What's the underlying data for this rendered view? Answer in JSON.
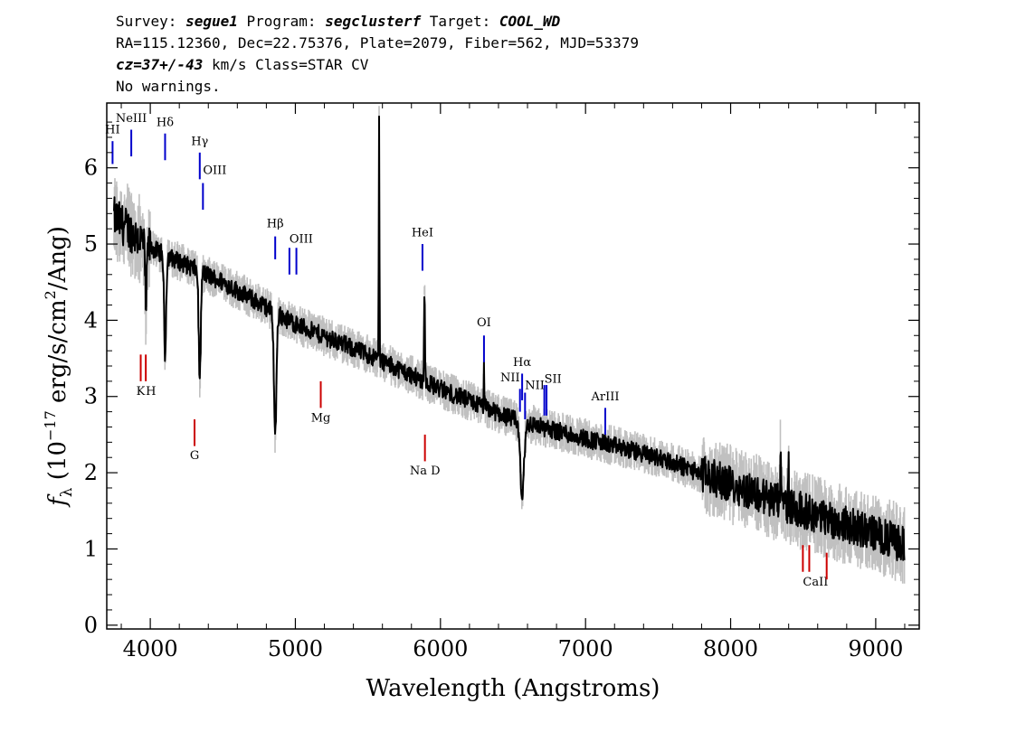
{
  "header": {
    "line1": {
      "survey_label": "Survey: ",
      "survey": "segue1",
      "program_label": " Program: ",
      "program": "segclusterf",
      "target_label": " Target: ",
      "target": "COOL_WD"
    },
    "line2": "RA=115.12360, Dec=22.75376, Plate=2079, Fiber=562, MJD=53379",
    "line3": {
      "cz": "cz=37+/-43",
      "rest": " km/s Class=STAR CV"
    },
    "line4": "No warnings."
  },
  "chart_data": {
    "type": "line",
    "xlabel": "Wavelength (Angstroms)",
    "ylabel_parts": {
      "f": "f",
      "sub": "λ",
      "pre": " (10",
      "exp1": "−17",
      "mid": " erg/s/cm",
      "exp2": "2",
      "post": "/Ang)"
    },
    "xlim": [
      3700,
      9300
    ],
    "ylim": [
      -0.05,
      6.85
    ],
    "xticks": [
      4000,
      5000,
      6000,
      7000,
      8000,
      9000
    ],
    "yticks": [
      0,
      1,
      2,
      3,
      4,
      5,
      6
    ],
    "xtick_labels": [
      "4000",
      "5000",
      "6000",
      "7000",
      "8000",
      "9000"
    ],
    "ytick_labels": [
      "0",
      "1",
      "2",
      "3",
      "4",
      "5",
      "6"
    ],
    "spectrum_range": [
      3750,
      9200
    ],
    "continuum": [
      [
        3750,
        5.35
      ],
      [
        4000,
        4.95
      ],
      [
        4500,
        4.5
      ],
      [
        5000,
        3.95
      ],
      [
        5500,
        3.55
      ],
      [
        6000,
        3.1
      ],
      [
        6500,
        2.7
      ],
      [
        7000,
        2.45
      ],
      [
        7500,
        2.2
      ],
      [
        8000,
        1.85
      ],
      [
        8500,
        1.5
      ],
      [
        9000,
        1.2
      ],
      [
        9200,
        1.05
      ]
    ],
    "absorption": [
      {
        "x": 3970,
        "depth": 0.8,
        "w": 8
      },
      {
        "x": 4102,
        "depth": 1.3,
        "w": 10
      },
      {
        "x": 4341,
        "depth": 1.4,
        "w": 10
      },
      {
        "x": 4861,
        "depth": 1.6,
        "w": 12
      },
      {
        "x": 6563,
        "depth": 1.0,
        "w": 18
      }
    ],
    "emission": [
      {
        "x": 5577,
        "height": 3.3,
        "w": 3
      },
      {
        "x": 5890,
        "height": 1.3,
        "w": 4
      },
      {
        "x": 6300,
        "height": 0.6,
        "w": 3
      },
      {
        "x": 8344,
        "height": 0.7,
        "w": 3
      },
      {
        "x": 8399,
        "height": 0.6,
        "w": 3
      }
    ],
    "lines": [
      {
        "label": "HI",
        "x": 3740,
        "ytop": 6.35,
        "ybot": 6.05,
        "color": "#0000cc",
        "label_y": 6.45,
        "anchor": "middle"
      },
      {
        "label": "NeIII",
        "x": 3869,
        "ytop": 6.5,
        "ybot": 6.15,
        "color": "#0000cc",
        "label_y": 6.6,
        "anchor": "middle"
      },
      {
        "label": "Hδ",
        "x": 4102,
        "ytop": 6.45,
        "ybot": 6.1,
        "color": "#0000cc",
        "label_y": 6.55,
        "anchor": "middle"
      },
      {
        "label": "Hγ",
        "x": 4341,
        "ytop": 6.2,
        "ybot": 5.85,
        "color": "#0000cc",
        "label_y": 6.3,
        "anchor": "middle"
      },
      {
        "label": "OIII",
        "x": 4363,
        "ytop": 5.8,
        "ybot": 5.45,
        "color": "#0000cc",
        "label_y": 5.92,
        "anchor": "start"
      },
      {
        "label": "Hβ",
        "x": 4861,
        "ytop": 5.1,
        "ybot": 4.8,
        "color": "#0000cc",
        "label_y": 5.22,
        "anchor": "middle"
      },
      {
        "label": "OIII",
        "x": 4959,
        "ytop": 4.95,
        "ybot": 4.6,
        "color": "#0000cc",
        "label_y": 5.02,
        "anchor": "start"
      },
      {
        "label": "",
        "x": 5007,
        "ytop": 4.95,
        "ybot": 4.6,
        "color": "#0000cc",
        "label_y": 5.02,
        "anchor": "start"
      },
      {
        "label": "HeI",
        "x": 5876,
        "ytop": 5.0,
        "ybot": 4.65,
        "color": "#0000cc",
        "label_y": 5.1,
        "anchor": "middle"
      },
      {
        "label": "OI",
        "x": 6300,
        "ytop": 3.8,
        "ybot": 3.45,
        "color": "#0000cc",
        "label_y": 3.92,
        "anchor": "middle"
      },
      {
        "label": "NII",
        "x": 6548,
        "ytop": 3.1,
        "ybot": 2.8,
        "color": "#0000cc",
        "label_y": 3.2,
        "anchor": "end"
      },
      {
        "label": "Hα",
        "x": 6563,
        "ytop": 3.3,
        "ybot": 2.95,
        "color": "#0000cc",
        "label_y": 3.4,
        "anchor": "middle"
      },
      {
        "label": "NII",
        "x": 6583,
        "ytop": 3.05,
        "ybot": 2.7,
        "color": "#0000cc",
        "label_y": 3.1,
        "anchor": "start"
      },
      {
        "label": "SII",
        "x": 6716,
        "ytop": 3.15,
        "ybot": 2.75,
        "color": "#0000cc",
        "label_y": 3.18,
        "anchor": "start"
      },
      {
        "label": "",
        "x": 6731,
        "ytop": 3.15,
        "ybot": 2.75,
        "color": "#0000cc",
        "label_y": 3.18,
        "anchor": "start"
      },
      {
        "label": "ArIII",
        "x": 7136,
        "ytop": 2.85,
        "ybot": 2.5,
        "color": "#0000cc",
        "label_y": 2.95,
        "anchor": "middle"
      },
      {
        "label": "K",
        "x": 3934,
        "ytop": 3.55,
        "ybot": 3.2,
        "color": "#cc0000",
        "label_y": 3.02,
        "anchor": "middle"
      },
      {
        "label": "H",
        "x": 3969,
        "ytop": 3.55,
        "ybot": 3.2,
        "color": "#cc0000",
        "label_y": 3.02,
        "anchor": "start"
      },
      {
        "label": "G",
        "x": 4305,
        "ytop": 2.7,
        "ybot": 2.35,
        "color": "#cc0000",
        "label_y": 2.18,
        "anchor": "middle"
      },
      {
        "label": "Mg",
        "x": 5175,
        "ytop": 3.2,
        "ybot": 2.85,
        "color": "#cc0000",
        "label_y": 2.67,
        "anchor": "middle"
      },
      {
        "label": "Na  D",
        "x": 5893,
        "ytop": 2.5,
        "ybot": 2.15,
        "color": "#cc0000",
        "label_y": 1.98,
        "anchor": "middle"
      },
      {
        "label": "CaII",
        "x": 8498,
        "ytop": 1.05,
        "ybot": 0.7,
        "color": "#cc0000",
        "label_y": 0.52,
        "anchor": "start"
      },
      {
        "label": "",
        "x": 8542,
        "ytop": 1.05,
        "ybot": 0.7,
        "color": "#cc0000",
        "label_y": 0.52,
        "anchor": "start"
      },
      {
        "label": "",
        "x": 8662,
        "ytop": 0.95,
        "ybot": 0.6,
        "color": "#cc0000",
        "label_y": 0.52,
        "anchor": "start"
      }
    ],
    "colors": {
      "flux": "#000000",
      "noise": "#c0c0c0",
      "emission_lines": "#0000cc",
      "absorption_lines": "#cc0000"
    }
  }
}
